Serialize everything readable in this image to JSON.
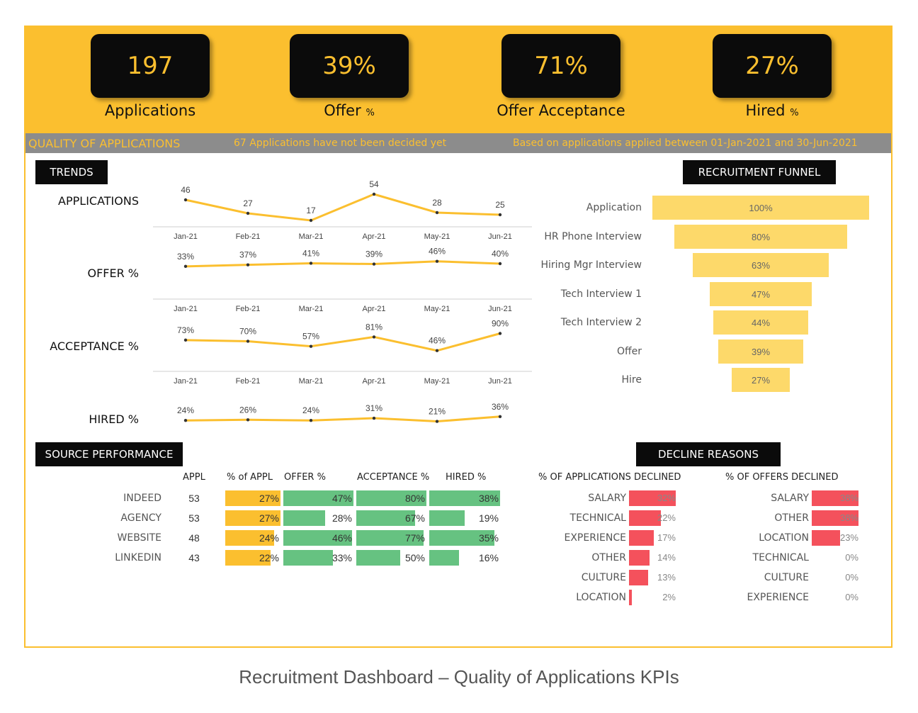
{
  "kpis": [
    {
      "value": "197",
      "label": "Applications",
      "suffix": ""
    },
    {
      "value": "39%",
      "label": "Offer",
      "suffix": "%"
    },
    {
      "value": "71%",
      "label": "Offer Acceptance",
      "suffix": ""
    },
    {
      "value": "27%",
      "label": "Hired",
      "suffix": "%"
    }
  ],
  "info": {
    "quality": "QUALITY OF APPLICATIONS",
    "undecided": "67 Applications have not been decided yet",
    "period": "Based on applications applied between 01-Jan-2021 and 30-Jun-2021"
  },
  "sections": {
    "trends": "TRENDS",
    "funnel": "RECRUITMENT FUNNEL",
    "source": "SOURCE PERFORMANCE",
    "decline": "DECLINE REASONS"
  },
  "colors": {
    "accent": "#fbbf2f",
    "funnel": "#fdd96a",
    "green": "#66c281",
    "orange": "#fbbf2f",
    "red": "#f4515c"
  },
  "chart_data": [
    {
      "type": "line",
      "title": "APPLICATIONS",
      "categories": [
        "Jan-21",
        "Feb-21",
        "Mar-21",
        "Apr-21",
        "May-21",
        "Jun-21"
      ],
      "values": [
        46,
        27,
        17,
        54,
        28,
        25
      ],
      "labels": [
        "46",
        "27",
        "17",
        "54",
        "28",
        "25"
      ]
    },
    {
      "type": "line",
      "title": "OFFER %",
      "categories": [
        "Jan-21",
        "Feb-21",
        "Mar-21",
        "Apr-21",
        "May-21",
        "Jun-21"
      ],
      "values": [
        33,
        37,
        41,
        39,
        46,
        40
      ],
      "labels": [
        "33%",
        "37%",
        "41%",
        "39%",
        "46%",
        "40%"
      ]
    },
    {
      "type": "line",
      "title": "ACCEPTANCE %",
      "categories": [
        "Jan-21",
        "Feb-21",
        "Mar-21",
        "Apr-21",
        "May-21",
        "Jun-21"
      ],
      "values": [
        73,
        70,
        57,
        81,
        46,
        90
      ],
      "labels": [
        "73%",
        "70%",
        "57%",
        "81%",
        "46%",
        "90%"
      ]
    },
    {
      "type": "line",
      "title": "HIRED %",
      "categories": [
        "Jan-21",
        "Feb-21",
        "Mar-21",
        "Apr-21",
        "May-21",
        "Jun-21"
      ],
      "values": [
        24,
        26,
        24,
        31,
        21,
        36
      ],
      "labels": [
        "24%",
        "26%",
        "24%",
        "31%",
        "21%",
        "36%"
      ]
    },
    {
      "type": "bar",
      "title": "RECRUITMENT FUNNEL",
      "categories": [
        "Application",
        "HR Phone Interview",
        "Hiring Mgr Interview",
        "Tech Interview 1",
        "Tech Interview 2",
        "Offer",
        "Hire"
      ],
      "values": [
        100,
        80,
        63,
        47,
        44,
        39,
        27
      ],
      "labels": [
        "100%",
        "80%",
        "63%",
        "47%",
        "44%",
        "39%",
        "27%"
      ]
    },
    {
      "type": "table",
      "title": "SOURCE PERFORMANCE",
      "columns": [
        "APPL",
        "% of APPL",
        "OFFER %",
        "ACCEPTANCE %",
        "HIRED %"
      ],
      "rows": [
        {
          "name": "INDEED",
          "appl": "53",
          "pct": 27,
          "offer": 47,
          "accept": 80,
          "hired": 38
        },
        {
          "name": "AGENCY",
          "appl": "53",
          "pct": 27,
          "offer": 28,
          "accept": 67,
          "hired": 19
        },
        {
          "name": "WEBSITE",
          "appl": "48",
          "pct": 24,
          "offer": 46,
          "accept": 77,
          "hired": 35
        },
        {
          "name": "LINKEDIN",
          "appl": "43",
          "pct": 22,
          "offer": 33,
          "accept": 50,
          "hired": 16
        }
      ]
    },
    {
      "type": "bar",
      "title": "% OF APPLICATIONS DECLINED",
      "categories": [
        "SALARY",
        "TECHNICAL",
        "EXPERIENCE",
        "OTHER",
        "CULTURE",
        "LOCATION"
      ],
      "values": [
        32,
        22,
        17,
        14,
        13,
        2
      ]
    },
    {
      "type": "bar",
      "title": "% OF OFFERS DECLINED",
      "categories": [
        "SALARY",
        "OTHER",
        "LOCATION",
        "TECHNICAL",
        "CULTURE",
        "EXPERIENCE"
      ],
      "values": [
        38,
        38,
        23,
        0,
        0,
        0
      ]
    }
  ],
  "caption": "Recruitment Dashboard – Quality of Applications KPIs"
}
